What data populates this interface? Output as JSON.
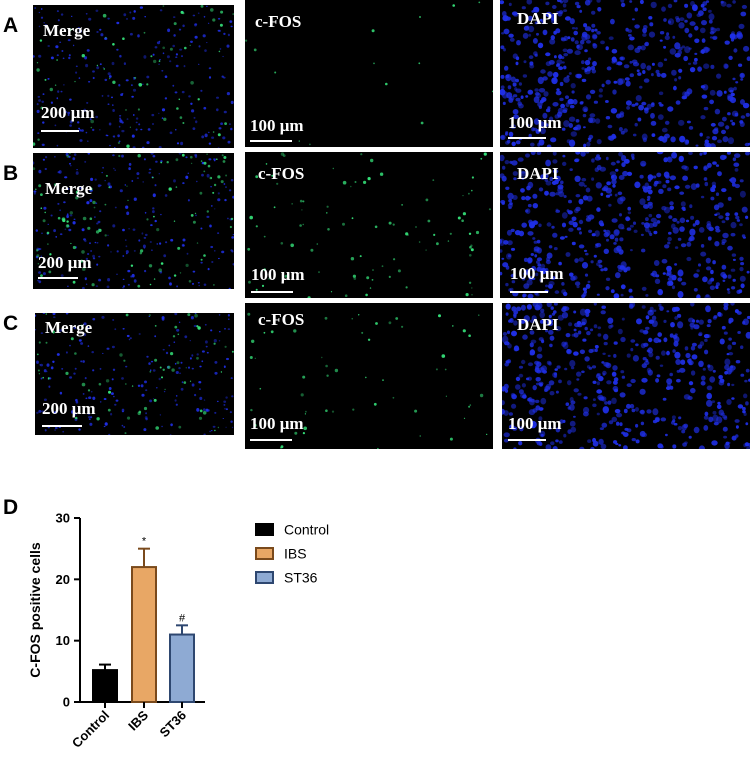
{
  "rows": [
    {
      "letter": "A",
      "panels": [
        {
          "title": "Merge",
          "scale": "200 μm",
          "channel": "merge",
          "density": 0.55
        },
        {
          "title": "c-FOS",
          "scale": "100 μm",
          "channel": "cfos",
          "density": 0.15
        },
        {
          "title": "DAPI",
          "scale": "100 μm",
          "channel": "dapi",
          "density": 1.0
        }
      ]
    },
    {
      "letter": "B",
      "panels": [
        {
          "title": "Merge",
          "scale": "200 μm",
          "channel": "merge",
          "density": 1.0
        },
        {
          "title": "c-FOS",
          "scale": "100 μm",
          "channel": "cfos",
          "density": 1.0
        },
        {
          "title": "DAPI",
          "scale": "100 μm",
          "channel": "dapi",
          "density": 1.0
        }
      ]
    },
    {
      "letter": "C",
      "panels": [
        {
          "title": "Merge",
          "scale": "200 μm",
          "channel": "merge",
          "density": 0.75
        },
        {
          "title": "c-FOS",
          "scale": "100 μm",
          "channel": "cfos",
          "density": 0.6
        },
        {
          "title": "DAPI",
          "scale": "100 μm",
          "channel": "dapi",
          "density": 1.0
        }
      ]
    }
  ],
  "chart_label": "D",
  "chart_data": {
    "type": "bar",
    "categories": [
      "Control",
      "IBS",
      "ST36"
    ],
    "values": [
      5.2,
      22,
      11
    ],
    "errors": [
      0.9,
      3.0,
      1.5
    ],
    "significance": [
      "",
      "*",
      "#"
    ],
    "colors": [
      "#000000",
      "#e8a765",
      "#8eaad3"
    ],
    "edge_colors": [
      "#000000",
      "#7a4a1c",
      "#2e4770"
    ],
    "ylabel": "C-FOS positive cells",
    "ylim": [
      0,
      30
    ],
    "yticks": [
      0,
      10,
      20,
      30
    ],
    "legend": [
      "Control",
      "IBS",
      "ST36"
    ],
    "legend_position": "right"
  },
  "colors": {
    "dapi": "#1f2fe6",
    "cfos": "#35e27a",
    "background": "#000000"
  }
}
